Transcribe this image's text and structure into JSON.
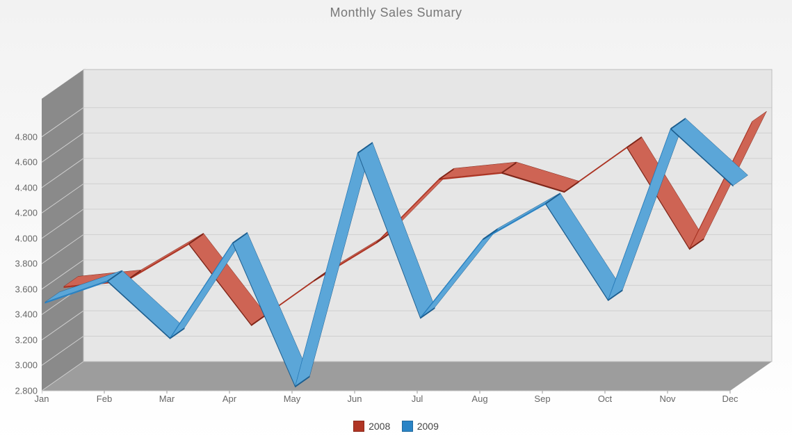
{
  "chart": {
    "type": "ribbon-3d",
    "title": "Monthly Sales Sumary",
    "title_color": "#777777",
    "title_fontsize": 18,
    "background_gradient_top": "#f2f2f2",
    "background_gradient_bottom": "#ffffff",
    "plot_area_fill": "#e6e6e6",
    "floor_fill": "#9d9d9d",
    "side_wall_fill": "#8a8a8a",
    "side_wall_highlight": "#bfbfbf",
    "grid_color": "#cfcfcf",
    "axis_label_color": "#666666",
    "axis_label_fontsize": 13,
    "depth_x": 60,
    "depth_y": 42,
    "categories": [
      "Jan",
      "Feb",
      "Mar",
      "Apr",
      "May",
      "Jun",
      "Jul",
      "Aug",
      "Sep",
      "Oct",
      "Nov",
      "Dec"
    ],
    "y_ticks": [
      2800,
      3000,
      3200,
      3400,
      3600,
      3800,
      4000,
      4200,
      4400,
      4600,
      4800
    ],
    "y_tick_labels": [
      "2.800",
      "3.000",
      "3.200",
      "3.400",
      "3.600",
      "3.800",
      "4.000",
      "4.200",
      "4.400",
      "4.600",
      "4.800"
    ],
    "ylim": [
      2800,
      5100
    ],
    "series": [
      {
        "name": "2008",
        "color_front": "#b03524",
        "color_top": "#ce6454",
        "color_side": "#7e2518",
        "values": [
          3500,
          3550,
          3840,
          3200,
          3550,
          3850,
          4350,
          4400,
          4250,
          4600,
          3800,
          4800
        ]
      },
      {
        "name": "2009",
        "color_front": "#2a84c6",
        "color_top": "#5ba6d8",
        "color_side": "#1c5d8e",
        "values": [
          3480,
          3650,
          3200,
          3950,
          2820,
          4660,
          3360,
          3980,
          4260,
          3500,
          4850,
          4400
        ]
      }
    ],
    "legend": {
      "items": [
        {
          "label": "2008",
          "color": "#b03524"
        },
        {
          "label": "2009",
          "color": "#2a84c6"
        }
      ]
    },
    "ribbon_thickness": 0.35
  }
}
